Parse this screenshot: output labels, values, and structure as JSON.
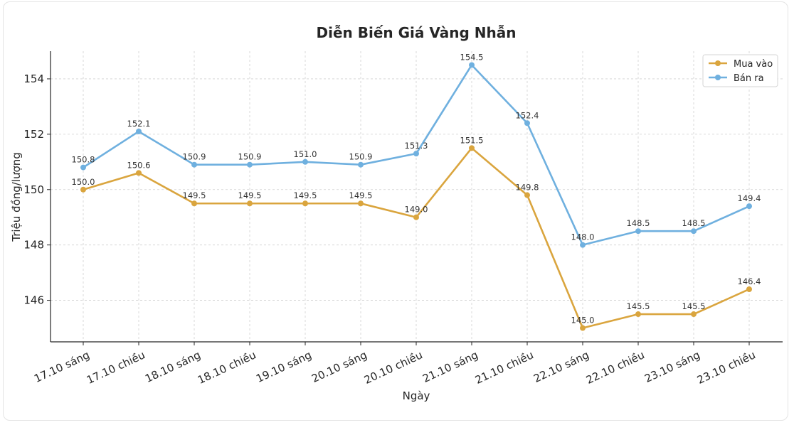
{
  "chart_data": {
    "type": "line",
    "title": "Diễn Biến Giá Vàng Nhẫn",
    "xlabel": "Ngày",
    "ylabel": "Triệu đồng/lượng",
    "categories": [
      "17.10 sáng",
      "17.10 chiều",
      "18.10 sáng",
      "18.10 chiều",
      "19.10 sáng",
      "20.10 sáng",
      "20.10 chiều",
      "21.10 sáng",
      "21.10 chiều",
      "22.10 sáng",
      "22.10 chiều",
      "23.10 sáng",
      "23.10 chiều"
    ],
    "series": [
      {
        "name": "Mua vào",
        "color": "#DAA53E",
        "values": [
          150.0,
          150.6,
          149.5,
          149.5,
          149.5,
          149.5,
          149.0,
          151.5,
          149.8,
          145.0,
          145.5,
          145.5,
          146.4
        ]
      },
      {
        "name": "Bán ra",
        "color": "#6FB0DF",
        "values": [
          150.8,
          152.1,
          150.9,
          150.9,
          151.0,
          150.9,
          151.3,
          154.5,
          152.4,
          148.0,
          148.5,
          148.5,
          149.4
        ]
      }
    ],
    "ylim": [
      144.5,
      155.0
    ],
    "yticks": [
      146,
      148,
      150,
      152,
      154
    ],
    "grid": true,
    "legend_position": "top-right"
  }
}
